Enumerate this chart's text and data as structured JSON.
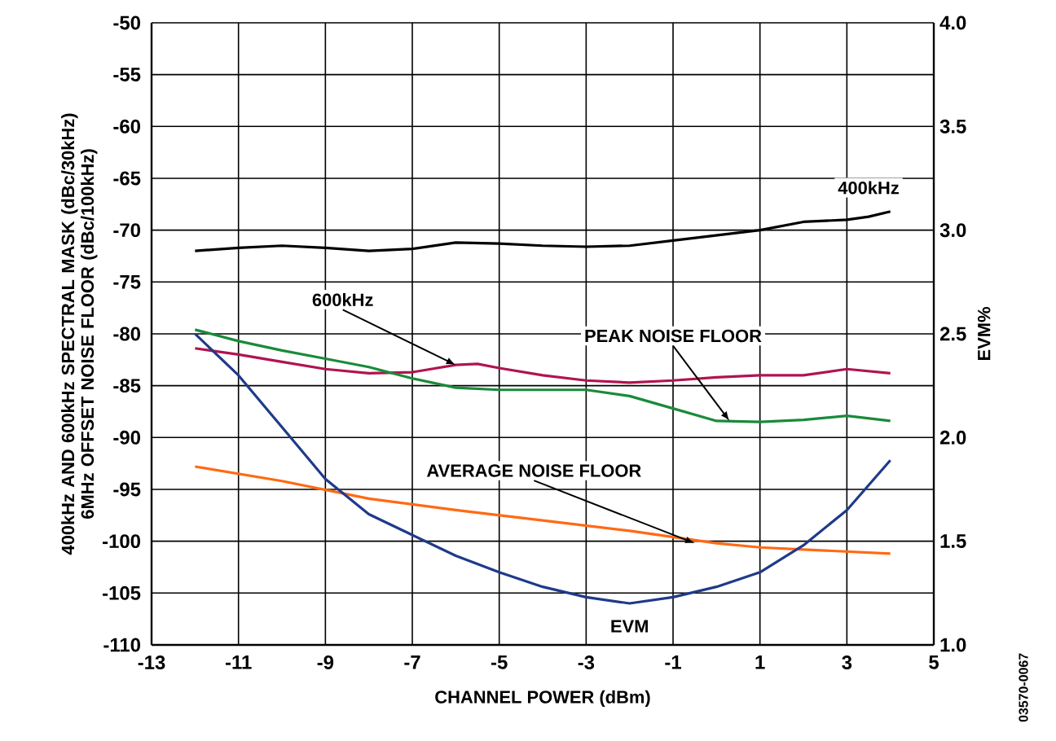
{
  "chart_data": {
    "type": "line",
    "xlabel": "CHANNEL POWER (dBm)",
    "ylabel": "400kHz AND 600kHz SPECTRAL MASK (dBc/30kHz) 6MHz OFFSET NOISE FLOOR (dBc/100kHz)",
    "y2label": "EVM%",
    "xlim": [
      -13,
      5
    ],
    "xticks": [
      -13,
      -11,
      -9,
      -7,
      -5,
      -3,
      -1,
      1,
      3,
      5
    ],
    "ylim": [
      -110,
      -50
    ],
    "yticks": [
      -110,
      -105,
      -100,
      -95,
      -90,
      -85,
      -80,
      -75,
      -70,
      -65,
      -60,
      -55,
      -50
    ],
    "y2lim": [
      1,
      4
    ],
    "y2ticks": [
      {
        "value": 1,
        "label": "1.0"
      },
      1.5,
      {
        "value": 2,
        "label": "2.0"
      },
      2.5,
      {
        "value": 3,
        "label": "3.0"
      },
      3.5,
      {
        "value": 4,
        "label": "4.0"
      }
    ],
    "grid": true,
    "marker": "none",
    "line_style": "solid",
    "series": [
      {
        "color": "#000000",
        "x": [
          -12,
          -11,
          -10,
          -9,
          -8,
          -7,
          -6,
          -5,
          -4,
          -3,
          -2,
          -1,
          0,
          1,
          2,
          3,
          3.5,
          4
        ],
        "values": [
          -72,
          -71.7,
          -71.5,
          -71.7,
          -72,
          -71.8,
          -71.2,
          -71.3,
          -71.5,
          -71.6,
          -71.5,
          -71,
          -70.5,
          -70,
          -69.2,
          -69,
          -68.7,
          -68.2
        ]
      },
      {
        "color": "#b0144f",
        "x": [
          -12,
          -11,
          -10,
          -9,
          -8,
          -7,
          -6,
          -5.5,
          -5,
          -4,
          -3,
          -2,
          -1,
          0,
          1,
          2,
          3,
          4
        ],
        "values": [
          -81.4,
          -82,
          -82.7,
          -83.4,
          -83.8,
          -83.7,
          -83,
          -82.9,
          -83.3,
          -84,
          -84.5,
          -84.7,
          -84.5,
          -84.2,
          -84,
          -84,
          -83.4,
          -83.8
        ]
      },
      {
        "color": "#1a8a3a",
        "x": [
          -12,
          -11,
          -10,
          -9,
          -8,
          -7,
          -6,
          -5,
          -4,
          -3,
          -2,
          -1,
          0,
          1,
          2,
          3,
          4
        ],
        "values": [
          -79.6,
          -80.7,
          -81.6,
          -82.4,
          -83.2,
          -84.3,
          -85.2,
          -85.4,
          -85.4,
          -85.4,
          -86,
          -87.2,
          -88.4,
          -88.5,
          -88.3,
          -87.9,
          -88.4
        ]
      },
      {
        "color": "#ff6a13",
        "x": [
          -12,
          -10,
          -8,
          -6,
          -4,
          -2,
          0,
          1,
          2,
          4
        ],
        "values": [
          -92.8,
          -94.2,
          -95.9,
          -97,
          -98,
          -99,
          -100.2,
          -100.6,
          -100.8,
          -101.2
        ]
      },
      {
        "color": "#1f3a8a",
        "axis": "y2",
        "x": [
          -12,
          -11,
          -10,
          -9,
          -8,
          -7,
          -6,
          -5,
          -4,
          -3,
          -2,
          -1,
          0,
          1,
          2,
          3,
          4
        ],
        "values": [
          2.5,
          2.3,
          2.05,
          1.8,
          1.63,
          1.53,
          1.43,
          1.35,
          1.28,
          1.23,
          1.2,
          1.23,
          1.28,
          1.35,
          1.48,
          1.65,
          1.89
        ]
      }
    ],
    "annotations": [
      {
        "text": "400kHz",
        "x": 3.5,
        "y": -68.7
      },
      {
        "text": "600kHz",
        "x": -6,
        "y": -83
      },
      {
        "text": "PEAK NOISE FLOOR",
        "x": 0.3,
        "y": -88.4
      },
      {
        "text": "AVERAGE NOISE FLOOR",
        "x": -0.5,
        "y": -100.2
      },
      {
        "text": "EVM",
        "x": -2,
        "y": -106
      },
      "03570-0067"
    ]
  }
}
